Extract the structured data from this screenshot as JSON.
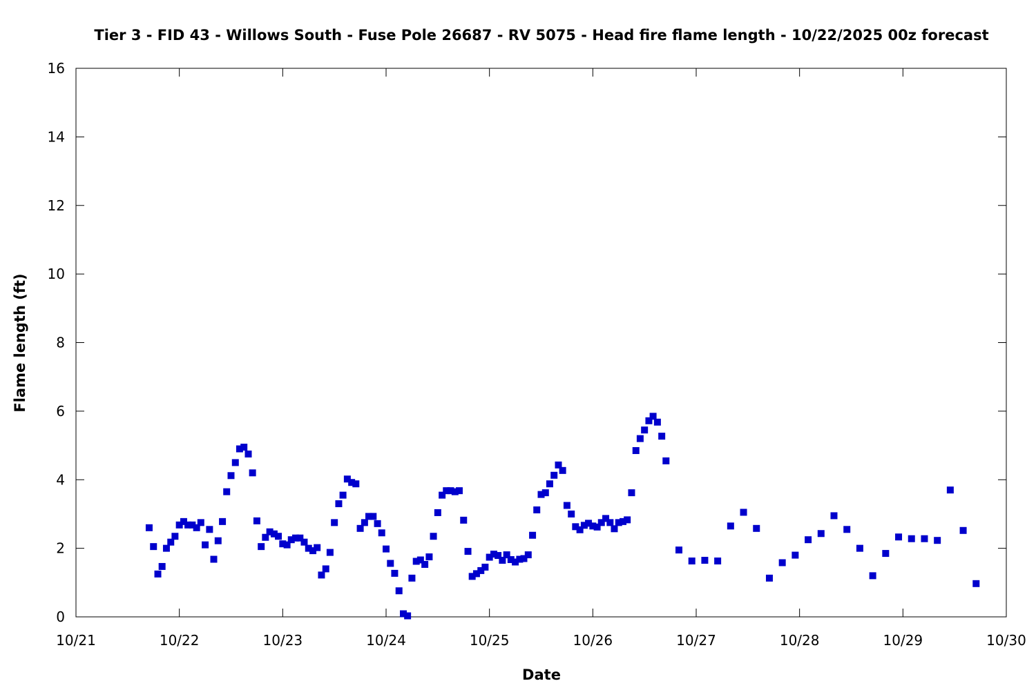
{
  "chart_data": {
    "type": "scatter",
    "title": "Tier 3 - FID 43 - Willows South - Fuse Pole 26687 - RV 5075 - Head fire flame length - 10/22/2025 00z forecast",
    "xlabel": "Date",
    "ylabel": "Flame length (ft)",
    "x_unit": "days (10/21 = 0)",
    "xlim": [
      0,
      9
    ],
    "ylim": [
      0,
      16
    ],
    "x_ticks": [
      {
        "value": 0,
        "label": "10/21"
      },
      {
        "value": 1,
        "label": "10/22"
      },
      {
        "value": 2,
        "label": "10/23"
      },
      {
        "value": 3,
        "label": "10/24"
      },
      {
        "value": 4,
        "label": "10/25"
      },
      {
        "value": 5,
        "label": "10/26"
      },
      {
        "value": 6,
        "label": "10/27"
      },
      {
        "value": 7,
        "label": "10/28"
      },
      {
        "value": 8,
        "label": "10/29"
      },
      {
        "value": 9,
        "label": "10/30"
      }
    ],
    "y_ticks": [
      {
        "value": 0,
        "label": "0"
      },
      {
        "value": 2,
        "label": "2"
      },
      {
        "value": 4,
        "label": "4"
      },
      {
        "value": 6,
        "label": "6"
      },
      {
        "value": 8,
        "label": "8"
      },
      {
        "value": 10,
        "label": "10"
      },
      {
        "value": 12,
        "label": "12"
      },
      {
        "value": 14,
        "label": "14"
      },
      {
        "value": 16,
        "label": "16"
      }
    ],
    "grid": false,
    "marker": "square",
    "series": [
      {
        "color": "#0000cc",
        "points": [
          [
            0.708,
            2.6
          ],
          [
            0.75,
            2.05
          ],
          [
            0.792,
            1.25
          ],
          [
            0.833,
            1.47
          ],
          [
            0.875,
            2.0
          ],
          [
            0.917,
            2.18
          ],
          [
            0.958,
            2.35
          ],
          [
            1.0,
            2.68
          ],
          [
            1.042,
            2.78
          ],
          [
            1.083,
            2.68
          ],
          [
            1.125,
            2.68
          ],
          [
            1.167,
            2.6
          ],
          [
            1.208,
            2.75
          ],
          [
            1.25,
            2.1
          ],
          [
            1.292,
            2.55
          ],
          [
            1.333,
            1.68
          ],
          [
            1.375,
            2.22
          ],
          [
            1.417,
            2.78
          ],
          [
            1.458,
            3.65
          ],
          [
            1.5,
            4.12
          ],
          [
            1.542,
            4.5
          ],
          [
            1.583,
            4.9
          ],
          [
            1.625,
            4.95
          ],
          [
            1.667,
            4.75
          ],
          [
            1.708,
            4.2
          ],
          [
            1.75,
            2.8
          ],
          [
            1.792,
            2.05
          ],
          [
            1.833,
            2.32
          ],
          [
            1.875,
            2.48
          ],
          [
            1.917,
            2.42
          ],
          [
            1.958,
            2.35
          ],
          [
            2.0,
            2.13
          ],
          [
            2.042,
            2.1
          ],
          [
            2.083,
            2.25
          ],
          [
            2.125,
            2.3
          ],
          [
            2.167,
            2.3
          ],
          [
            2.208,
            2.18
          ],
          [
            2.25,
            2.0
          ],
          [
            2.292,
            1.93
          ],
          [
            2.333,
            2.02
          ],
          [
            2.375,
            1.22
          ],
          [
            2.417,
            1.4
          ],
          [
            2.458,
            1.88
          ],
          [
            2.5,
            2.75
          ],
          [
            2.542,
            3.3
          ],
          [
            2.583,
            3.55
          ],
          [
            2.625,
            4.02
          ],
          [
            2.667,
            3.92
          ],
          [
            2.708,
            3.88
          ],
          [
            2.75,
            2.58
          ],
          [
            2.792,
            2.75
          ],
          [
            2.833,
            2.93
          ],
          [
            2.875,
            2.93
          ],
          [
            2.917,
            2.72
          ],
          [
            2.958,
            2.45
          ],
          [
            3.0,
            1.98
          ],
          [
            3.042,
            1.56
          ],
          [
            3.083,
            1.27
          ],
          [
            3.125,
            0.76
          ],
          [
            3.167,
            0.09
          ],
          [
            3.208,
            0.03
          ],
          [
            3.25,
            1.13
          ],
          [
            3.292,
            1.62
          ],
          [
            3.333,
            1.66
          ],
          [
            3.375,
            1.53
          ],
          [
            3.417,
            1.75
          ],
          [
            3.458,
            2.35
          ],
          [
            3.5,
            3.04
          ],
          [
            3.542,
            3.55
          ],
          [
            3.583,
            3.68
          ],
          [
            3.625,
            3.68
          ],
          [
            3.667,
            3.65
          ],
          [
            3.708,
            3.68
          ],
          [
            3.75,
            2.82
          ],
          [
            3.792,
            1.91
          ],
          [
            3.833,
            1.18
          ],
          [
            3.875,
            1.26
          ],
          [
            3.917,
            1.35
          ],
          [
            3.958,
            1.45
          ],
          [
            4.0,
            1.74
          ],
          [
            4.042,
            1.83
          ],
          [
            4.083,
            1.79
          ],
          [
            4.125,
            1.65
          ],
          [
            4.167,
            1.81
          ],
          [
            4.208,
            1.67
          ],
          [
            4.25,
            1.6
          ],
          [
            4.292,
            1.68
          ],
          [
            4.333,
            1.7
          ],
          [
            4.375,
            1.81
          ],
          [
            4.417,
            2.38
          ],
          [
            4.458,
            3.12
          ],
          [
            4.5,
            3.57
          ],
          [
            4.542,
            3.62
          ],
          [
            4.583,
            3.88
          ],
          [
            4.625,
            4.13
          ],
          [
            4.667,
            4.43
          ],
          [
            4.708,
            4.27
          ],
          [
            4.75,
            3.25
          ],
          [
            4.792,
            3.0
          ],
          [
            4.833,
            2.63
          ],
          [
            4.875,
            2.54
          ],
          [
            4.917,
            2.67
          ],
          [
            4.958,
            2.73
          ],
          [
            5.0,
            2.65
          ],
          [
            5.042,
            2.62
          ],
          [
            5.083,
            2.75
          ],
          [
            5.125,
            2.87
          ],
          [
            5.167,
            2.75
          ],
          [
            5.208,
            2.57
          ],
          [
            5.25,
            2.75
          ],
          [
            5.292,
            2.78
          ],
          [
            5.333,
            2.83
          ],
          [
            5.375,
            3.62
          ],
          [
            5.417,
            4.85
          ],
          [
            5.458,
            5.2
          ],
          [
            5.5,
            5.45
          ],
          [
            5.542,
            5.72
          ],
          [
            5.583,
            5.85
          ],
          [
            5.625,
            5.68
          ],
          [
            5.667,
            5.27
          ],
          [
            5.708,
            4.55
          ],
          [
            5.833,
            1.95
          ],
          [
            5.958,
            1.63
          ],
          [
            6.083,
            1.65
          ],
          [
            6.208,
            1.63
          ],
          [
            6.333,
            2.65
          ],
          [
            6.458,
            3.05
          ],
          [
            6.583,
            2.58
          ],
          [
            6.708,
            1.13
          ],
          [
            6.833,
            1.58
          ],
          [
            6.958,
            1.8
          ],
          [
            7.083,
            2.25
          ],
          [
            7.208,
            2.43
          ],
          [
            7.333,
            2.95
          ],
          [
            7.458,
            2.55
          ],
          [
            7.583,
            2.0
          ],
          [
            7.708,
            1.2
          ],
          [
            7.833,
            1.85
          ],
          [
            7.958,
            2.33
          ],
          [
            8.083,
            2.28
          ],
          [
            8.208,
            2.28
          ],
          [
            8.333,
            2.23
          ],
          [
            8.458,
            3.7
          ],
          [
            8.583,
            2.52
          ],
          [
            8.708,
            0.97
          ]
        ]
      }
    ]
  }
}
